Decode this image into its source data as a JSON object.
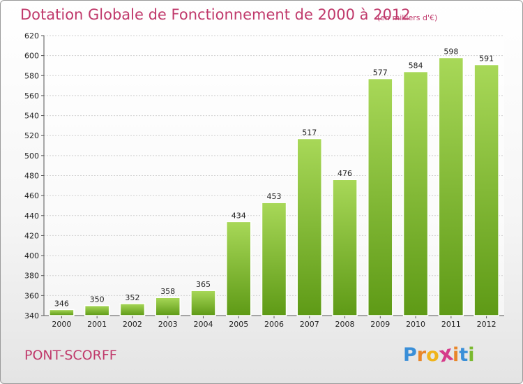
{
  "title": "Dotation Globale de Fonctionnement de 2000 à 2012",
  "unit_note": "(en milliers d'€)",
  "place_name": "PONT-SCORFF",
  "logo": {
    "letters": [
      "P",
      "r",
      "o",
      "x",
      "i",
      "t",
      "i"
    ],
    "colors": [
      "#3a8fd8",
      "#e8862a",
      "#f0b41c",
      "#d63a8a",
      "#e8862a",
      "#3a8fd8",
      "#7ab92f"
    ]
  },
  "colors": {
    "bar_light": "#a8d858",
    "bar_dark": "#5e9a16",
    "title": "#c0396b",
    "grid": "#d0d0d0"
  },
  "chart_data": {
    "type": "bar",
    "title": "Dotation Globale de Fonctionnement de 2000 à 2012",
    "subtitle": "(en milliers d'€)",
    "xlabel": "",
    "ylabel": "",
    "categories": [
      "2000",
      "2001",
      "2002",
      "2003",
      "2004",
      "2005",
      "2006",
      "2007",
      "2008",
      "2009",
      "2010",
      "2011",
      "2012"
    ],
    "values": [
      346,
      350,
      352,
      358,
      365,
      434,
      453,
      517,
      476,
      577,
      584,
      598,
      591
    ],
    "ylim": [
      340,
      620
    ],
    "yticks": [
      340,
      360,
      380,
      400,
      420,
      440,
      460,
      480,
      500,
      520,
      540,
      560,
      580,
      600,
      620
    ],
    "grid": true,
    "legend": "none"
  }
}
